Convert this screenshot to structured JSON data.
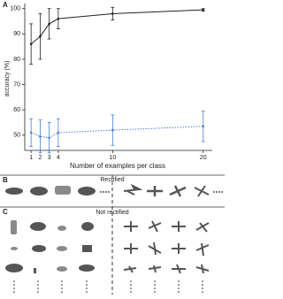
{
  "chart_data": {
    "type": "line",
    "panel_label": "A",
    "x_label": "Number of examples per class",
    "y_label": "accuracy (%)",
    "x": [
      1,
      2,
      3,
      4,
      10,
      20
    ],
    "series": [
      {
        "name": "Rectified",
        "color": "#222222",
        "line_style": "solid",
        "values": [
          86,
          89,
          94,
          96,
          98,
          99.5
        ],
        "errors": [
          8,
          9,
          6,
          4,
          2.5,
          0.5
        ]
      },
      {
        "name": "Not rectified",
        "color": "#4a7fd4",
        "line_style": "dotted",
        "values": [
          51,
          49.5,
          49,
          51,
          52,
          53.5
        ],
        "errors": [
          5.5,
          6.5,
          6,
          5.5,
          6,
          6
        ]
      }
    ],
    "xlim": [
      0.3,
      21
    ],
    "ylim": [
      44,
      102
    ],
    "xticks": [
      1,
      2,
      3,
      4,
      10,
      20
    ],
    "yticks": [
      50,
      60,
      70,
      80,
      90,
      100
    ]
  },
  "panels": [
    {
      "label": "B",
      "title": "Rectified"
    },
    {
      "label": "C",
      "title": "Not rectified"
    }
  ]
}
